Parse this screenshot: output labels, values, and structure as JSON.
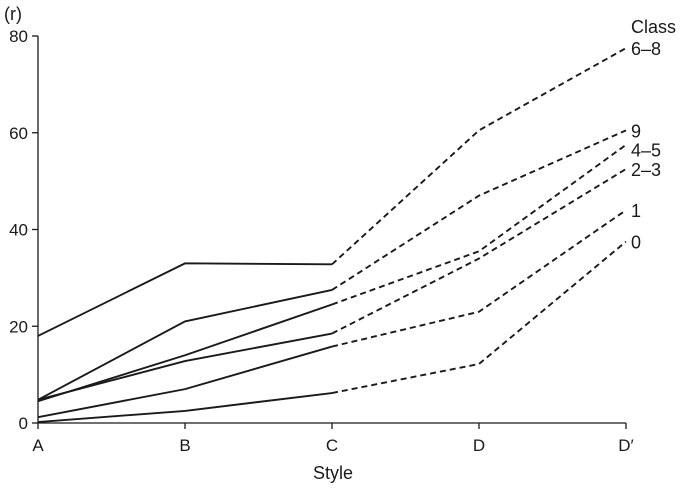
{
  "chart_data": {
    "type": "line",
    "ylabel": "(r)",
    "xlabel": "Style",
    "legend_title": "Class",
    "categories": [
      "A",
      "B",
      "C",
      "D",
      "D′"
    ],
    "ylim": [
      0,
      80
    ],
    "yticks": [
      0,
      20,
      40,
      60,
      80
    ],
    "grid": false,
    "solid_until_index": 2,
    "series": [
      {
        "name": "6–8",
        "values": [
          18,
          33,
          32.8,
          60.5,
          77.5
        ]
      },
      {
        "name": "9",
        "values": [
          4.8,
          21,
          27.5,
          47,
          60.5
        ]
      },
      {
        "name": "4–5",
        "values": [
          4.5,
          14,
          24.5,
          35.5,
          57.5
        ]
      },
      {
        "name": "2–3",
        "values": [
          4.8,
          12.8,
          18.5,
          34,
          52.5
        ]
      },
      {
        "name": "1",
        "values": [
          1.2,
          7,
          15.8,
          23,
          44
        ]
      },
      {
        "name": "0",
        "values": [
          0.2,
          2.5,
          6.2,
          12.2,
          37.5
        ]
      }
    ]
  }
}
